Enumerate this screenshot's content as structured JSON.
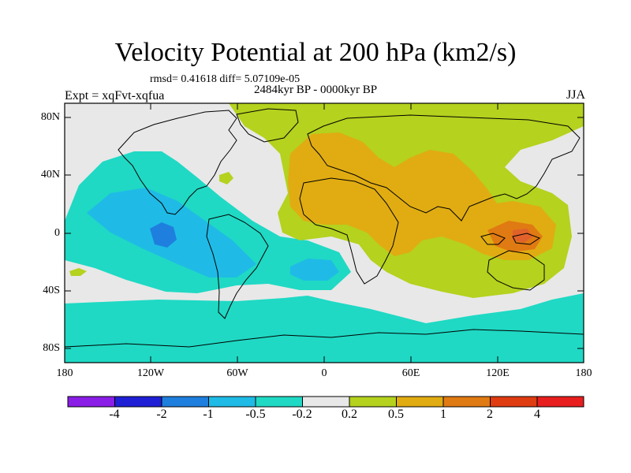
{
  "title": "Velocity Potential at 200 hPa (km2/s)",
  "stats": "rmsd= 0.41618 diff= 5.07109e-05",
  "period": "2484kyr BP - 0000kyr BP",
  "experiment": "Expt = xqFvt-xqfua",
  "season": "JJA",
  "axes": {
    "lat_labels": [
      "80N",
      "40N",
      "0",
      "40S",
      "80S"
    ],
    "lon_labels": [
      "180",
      "120W",
      "60W",
      "0",
      "60E",
      "120E",
      "180"
    ]
  },
  "colorbar": {
    "labels": [
      "-4",
      "-2",
      "-1",
      "-0.5",
      "-0.2",
      "0.2",
      "0.5",
      "1",
      "2",
      "4"
    ],
    "colors": [
      "#8a1ee6",
      "#1f1fd6",
      "#1e7fde",
      "#1fbbe6",
      "#1fd9c4",
      "#e8e8e8",
      "#b4d21e",
      "#e0ac12",
      "#e07a12",
      "#e03c12",
      "#e81e1e"
    ]
  },
  "field_colors": {
    "neutral": "#e8e8e8",
    "weak_negative": "#1fd9c4",
    "moderate_negative": "#1fbbe6",
    "strong_negative": "#1e7fde",
    "weak_positive": "#b4d21e",
    "moderate_positive": "#e0ac12",
    "strong_positive": "#e07a12"
  }
}
